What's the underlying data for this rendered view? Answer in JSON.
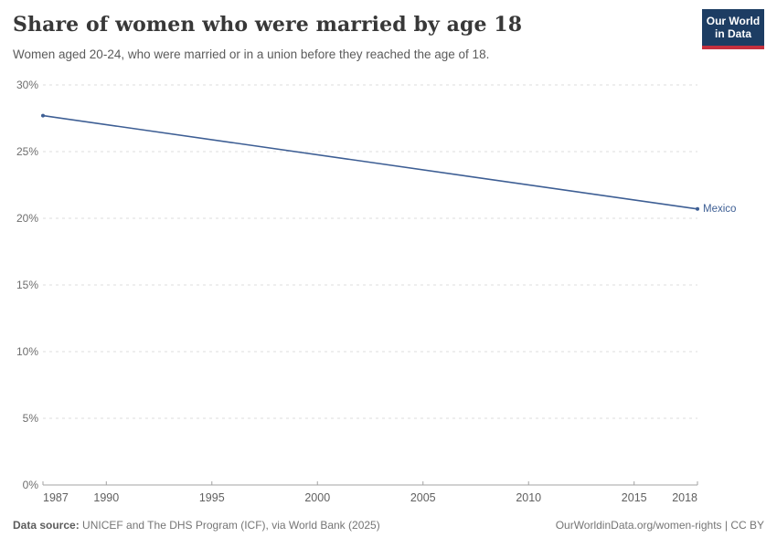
{
  "header": {
    "title": "Share of women who were married by age 18",
    "subtitle": "Women aged 20-24, who were married or in a union before they reached the age of 18.",
    "logo": {
      "line1": "Our World",
      "line2": "in Data",
      "bg_color": "#1d3d63",
      "accent_color": "#c5303e"
    }
  },
  "chart_data": {
    "type": "line",
    "title": "Share of women who were married by age 18",
    "subtitle": "Women aged 20-24, who were married or in a union before they reached the age of 18.",
    "xlabel": "",
    "ylabel": "",
    "xlim": [
      1987,
      2018
    ],
    "ylim": [
      0,
      30
    ],
    "x_ticks": [
      1987,
      1990,
      1995,
      2000,
      2005,
      2010,
      2015,
      2018
    ],
    "y_ticks": [
      0,
      5,
      10,
      15,
      20,
      25,
      30
    ],
    "y_tick_suffix": "%",
    "grid": "horizontal-dashed",
    "gridline_color": "#dcdcdc",
    "axis_color": "#a3a3a3",
    "legend_position": "line-end-label",
    "series": [
      {
        "name": "Mexico",
        "color": "#3d5e94",
        "points": [
          {
            "x": 1987,
            "y": 27.7
          },
          {
            "x": 2018,
            "y": 20.7
          }
        ]
      }
    ]
  },
  "footer": {
    "datasource_bold": "Data source:",
    "datasource_rest": "UNICEF and The DHS Program (ICF), via World Bank (2025)",
    "link": "OurWorldinData.org/women-rights | CC BY"
  }
}
